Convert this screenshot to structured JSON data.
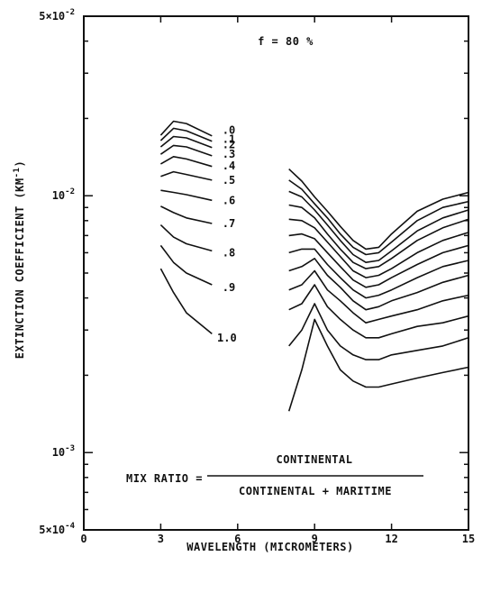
{
  "chart_data": {
    "type": "line",
    "title": "f = 80 %",
    "xlabel": "WAVELENGTH (MICROMETERS)",
    "ylabel": "EXTINCTION COEFFICIENT (KM-1)",
    "ylabel_text": "EXTINCTION COEFFICIENT (KM",
    "ylabel_sup": "-1",
    "ylabel_close": ")",
    "xlim": [
      0,
      15
    ],
    "ylim": [
      0.0005,
      0.05
    ],
    "yscale": "log",
    "x_ticks": [
      {
        "value": 0,
        "label": "0"
      },
      {
        "value": 3,
        "label": "3"
      },
      {
        "value": 6,
        "label": "6"
      },
      {
        "value": 9,
        "label": "9"
      },
      {
        "value": 12,
        "label": "12"
      },
      {
        "value": 15,
        "label": "15"
      }
    ],
    "y_ticks": [
      {
        "value": 0.05,
        "base": "5×10",
        "exp": "-2"
      },
      {
        "value": 0.01,
        "base": "10",
        "exp": "-2"
      },
      {
        "value": 0.001,
        "base": "10",
        "exp": "-3"
      },
      {
        "value": 0.0005,
        "base": "5×10",
        "exp": "-4"
      }
    ],
    "formula": {
      "lhs": "MIX RATIO =",
      "numerator": "CONTINENTAL",
      "denominator": "CONTINENTAL + MARITIME"
    },
    "series": [
      {
        "name": "0",
        "segments": [
          {
            "x": [
              3.0,
              3.5,
              4.0,
              5.0
            ],
            "y": [
              0.0172,
              0.0195,
              0.0191,
              0.0171
            ]
          },
          {
            "x": [
              8.0,
              8.5,
              9.0,
              9.5,
              10.0,
              10.5,
              11.0,
              11.5,
              12.0,
              13.0,
              14.0,
              15.0
            ],
            "y": [
              0.0127,
              0.0114,
              0.0099,
              0.0087,
              0.0076,
              0.0067,
              0.0062,
              0.0063,
              0.0071,
              0.0087,
              0.0097,
              0.0103
            ]
          }
        ]
      },
      {
        "name": ".1",
        "segments": [
          {
            "x": [
              3.0,
              3.5,
              4.0,
              5.0
            ],
            "y": [
              0.0164,
              0.0183,
              0.0179,
              0.0163
            ]
          },
          {
            "x": [
              8.0,
              8.5,
              9.0,
              9.5,
              10.0,
              10.5,
              11.0,
              11.5,
              12.0,
              13.0,
              14.0,
              15.0
            ],
            "y": [
              0.0115,
              0.0106,
              0.0093,
              0.0082,
              0.0071,
              0.0063,
              0.0059,
              0.006,
              0.0066,
              0.008,
              0.009,
              0.0095
            ]
          }
        ]
      },
      {
        "name": ".2",
        "segments": [
          {
            "x": [
              3.0,
              3.5,
              4.0,
              5.0
            ],
            "y": [
              0.0155,
              0.017,
              0.0168,
              0.0154
            ]
          },
          {
            "x": [
              8.0,
              8.5,
              9.0,
              9.5,
              10.0,
              10.5,
              11.0,
              11.5,
              12.0,
              13.0,
              14.0,
              15.0
            ],
            "y": [
              0.0104,
              0.0099,
              0.0088,
              0.0077,
              0.0067,
              0.0059,
              0.0055,
              0.0056,
              0.0061,
              0.0073,
              0.0082,
              0.0088
            ]
          }
        ]
      },
      {
        "name": ".3",
        "segments": [
          {
            "x": [
              3.0,
              3.5,
              4.0,
              5.0
            ],
            "y": [
              0.0145,
              0.0157,
              0.0155,
              0.0143
            ]
          },
          {
            "x": [
              8.0,
              8.5,
              9.0,
              9.5,
              10.0,
              10.5,
              11.0,
              11.5,
              12.0,
              13.0,
              14.0,
              15.0
            ],
            "y": [
              0.0092,
              0.009,
              0.0082,
              0.0071,
              0.0062,
              0.0055,
              0.0052,
              0.0053,
              0.0057,
              0.0067,
              0.0075,
              0.0081
            ]
          }
        ]
      },
      {
        "name": ".4",
        "segments": [
          {
            "x": [
              3.0,
              3.5,
              4.0,
              5.0
            ],
            "y": [
              0.0133,
              0.0142,
              0.0139,
              0.013
            ]
          },
          {
            "x": [
              8.0,
              8.5,
              9.0,
              9.5,
              10.0,
              10.5,
              11.0,
              11.5,
              12.0,
              13.0,
              14.0,
              15.0
            ],
            "y": [
              0.0081,
              0.008,
              0.0075,
              0.0066,
              0.0058,
              0.0051,
              0.0048,
              0.0049,
              0.0052,
              0.006,
              0.0067,
              0.0072
            ]
          }
        ]
      },
      {
        "name": ".5",
        "segments": [
          {
            "x": [
              3.0,
              3.5,
              4.0,
              5.0
            ],
            "y": [
              0.0119,
              0.0124,
              0.0121,
              0.0115
            ]
          },
          {
            "x": [
              8.0,
              8.5,
              9.0,
              9.5,
              10.0,
              10.5,
              11.0,
              11.5,
              12.0,
              13.0,
              14.0,
              15.0
            ],
            "y": [
              0.007,
              0.0071,
              0.0068,
              0.006,
              0.0053,
              0.0047,
              0.0044,
              0.0045,
              0.0048,
              0.0054,
              0.006,
              0.0064
            ]
          }
        ]
      },
      {
        "name": ".6",
        "segments": [
          {
            "x": [
              3.0,
              3.5,
              4.0,
              5.0
            ],
            "y": [
              0.0105,
              0.0103,
              0.0101,
              0.0096
            ]
          },
          {
            "x": [
              8.0,
              8.5,
              9.0,
              9.5,
              10.0,
              10.5,
              11.0,
              11.5,
              12.0,
              13.0,
              14.0,
              15.0
            ],
            "y": [
              0.006,
              0.0062,
              0.0062,
              0.0054,
              0.0048,
              0.0043,
              0.004,
              0.0041,
              0.0043,
              0.0048,
              0.0053,
              0.0056
            ]
          }
        ]
      },
      {
        "name": ".7",
        "segments": [
          {
            "x": [
              3.0,
              3.5,
              4.0,
              5.0
            ],
            "y": [
              0.0091,
              0.0086,
              0.0082,
              0.0078
            ]
          },
          {
            "x": [
              8.0,
              8.5,
              9.0,
              9.5,
              10.0,
              10.5,
              11.0,
              11.5,
              12.0,
              13.0,
              14.0,
              15.0
            ],
            "y": [
              0.0051,
              0.0053,
              0.0057,
              0.0049,
              0.0044,
              0.0039,
              0.0036,
              0.0037,
              0.0039,
              0.0042,
              0.0046,
              0.0049
            ]
          }
        ]
      },
      {
        "name": ".8",
        "segments": [
          {
            "x": [
              3.0,
              3.5,
              4.0,
              5.0
            ],
            "y": [
              0.0077,
              0.0069,
              0.0065,
              0.0061
            ]
          },
          {
            "x": [
              8.0,
              8.5,
              9.0,
              9.5,
              10.0,
              10.5,
              11.0,
              11.5,
              12.0,
              13.0,
              14.0,
              15.0
            ],
            "y": [
              0.0043,
              0.0045,
              0.0051,
              0.0043,
              0.0039,
              0.0035,
              0.0032,
              0.0033,
              0.0034,
              0.0036,
              0.0039,
              0.0041
            ]
          }
        ]
      },
      {
        "name": ".9",
        "segments": [
          {
            "x": [
              3.0,
              3.5,
              4.0,
              5.0
            ],
            "y": [
              0.0064,
              0.0055,
              0.005,
              0.0045
            ]
          },
          {
            "x": [
              8.0,
              8.5,
              9.0,
              9.5,
              10.0,
              10.5,
              11.0,
              11.5,
              12.0,
              13.0,
              14.0,
              15.0
            ],
            "y": [
              0.0036,
              0.0038,
              0.0045,
              0.0037,
              0.0033,
              0.003,
              0.0028,
              0.0028,
              0.0029,
              0.0031,
              0.0032,
              0.0034
            ]
          }
        ]
      },
      {
        "name": "1.0",
        "segments": [
          {
            "x": [
              3.0,
              3.5,
              4.0,
              5.0
            ],
            "y": [
              0.0052,
              0.0042,
              0.0035,
              0.0029
            ]
          },
          {
            "x": [
              8.0,
              8.5,
              9.0,
              9.5,
              10.0,
              10.5,
              11.0,
              11.5,
              12.0,
              13.0,
              14.0,
              15.0
            ],
            "y": [
              0.0026,
              0.003,
              0.0038,
              0.003,
              0.0026,
              0.0024,
              0.0023,
              0.0023,
              0.0024,
              0.0025,
              0.0026,
              0.0028
            ]
          }
        ]
      },
      {
        "name": "",
        "segments": [
          {
            "x": [
              8.0,
              8.5,
              9.0,
              9.5,
              10.0,
              10.5,
              11.0,
              11.5,
              12.0,
              13.0,
              14.0,
              15.0
            ],
            "y": [
              0.00145,
              0.0021,
              0.0033,
              0.0026,
              0.0021,
              0.0019,
              0.0018,
              0.0018,
              0.00185,
              0.00195,
              0.00205,
              0.00215
            ]
          }
        ]
      }
    ],
    "series_labels": [
      {
        "text": ".0",
        "x": 5.4,
        "y": 0.018
      },
      {
        "text": ".1",
        "x": 5.4,
        "y": 0.0166
      },
      {
        "text": ".2",
        "x": 5.4,
        "y": 0.0158
      },
      {
        "text": ".3",
        "x": 5.4,
        "y": 0.0145
      },
      {
        "text": ".4",
        "x": 5.4,
        "y": 0.0131
      },
      {
        "text": ".5",
        "x": 5.4,
        "y": 0.0115
      },
      {
        "text": ".6",
        "x": 5.4,
        "y": 0.0096
      },
      {
        "text": ".7",
        "x": 5.4,
        "y": 0.0078
      },
      {
        "text": ".8",
        "x": 5.4,
        "y": 0.006
      },
      {
        "text": ".9",
        "x": 5.4,
        "y": 0.0044
      },
      {
        "text": "1.0",
        "x": 5.2,
        "y": 0.0028
      }
    ]
  }
}
